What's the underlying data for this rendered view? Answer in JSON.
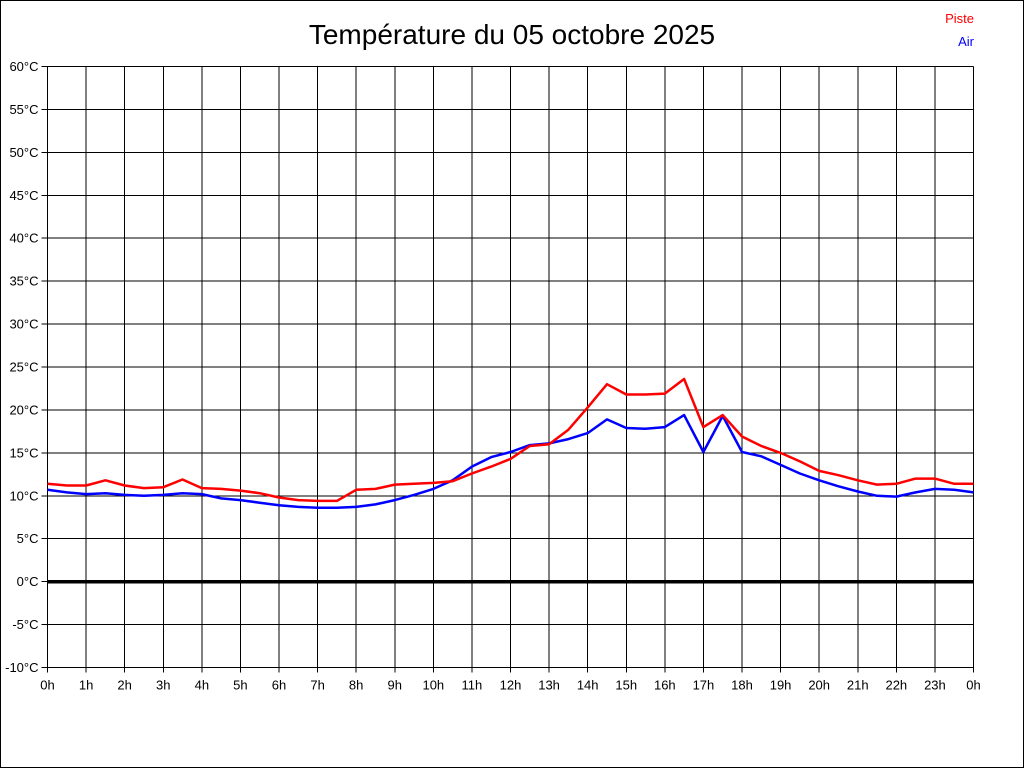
{
  "title": "Température du 05 octobre 2025",
  "legend": {
    "items": [
      {
        "label": "Piste",
        "color": "#ff0000"
      },
      {
        "label": "Air",
        "color": "#0000ff"
      }
    ]
  },
  "colors": {
    "background": "#ffffff",
    "grid": "#000000",
    "zero_line": "#000000",
    "piste": "#ff0000",
    "air": "#0000ff"
  },
  "chart_data": {
    "type": "line",
    "title": "Température du 05 octobre 2025",
    "xlabel": "",
    "ylabel": "°C",
    "xlim": [
      0,
      24
    ],
    "ylim": [
      -10,
      60
    ],
    "y_tick_step": 5,
    "grid": true,
    "zero_line_bold": true,
    "legend_position": "top-right",
    "x_tick_labels": [
      "0h",
      "1h",
      "2h",
      "3h",
      "4h",
      "5h",
      "6h",
      "7h",
      "8h",
      "9h",
      "10h",
      "11h",
      "12h",
      "13h",
      "14h",
      "15h",
      "16h",
      "17h",
      "18h",
      "19h",
      "20h",
      "21h",
      "22h",
      "23h",
      "0h"
    ],
    "y_tick_labels": [
      "60°C",
      "55°C",
      "50°C",
      "45°C",
      "40°C",
      "35°C",
      "30°C",
      "25°C",
      "20°C",
      "15°C",
      "10°C",
      "5°C",
      "0°C",
      "-5°C",
      "-10°C"
    ],
    "x": [
      0,
      0.5,
      1,
      1.5,
      2,
      2.5,
      3,
      3.5,
      4,
      4.5,
      5,
      5.5,
      6,
      6.5,
      7,
      7.5,
      8,
      8.5,
      9,
      9.5,
      10,
      10.5,
      11,
      11.5,
      12,
      12.5,
      13,
      13.5,
      14,
      14.5,
      15,
      15.5,
      16,
      16.5,
      17,
      17.5,
      18,
      18.5,
      19,
      19.5,
      20,
      20.5,
      21,
      21.5,
      22,
      22.5,
      23,
      23.5,
      24
    ],
    "series": [
      {
        "name": "Piste",
        "color": "#ff0000",
        "values": [
          11.4,
          11.2,
          11.2,
          11.8,
          11.2,
          10.9,
          11.0,
          11.9,
          10.9,
          10.8,
          10.6,
          10.3,
          9.8,
          9.5,
          9.4,
          9.4,
          10.7,
          10.8,
          11.3,
          11.4,
          11.5,
          11.7,
          12.6,
          13.4,
          14.3,
          15.8,
          16.0,
          17.7,
          20.3,
          23.0,
          21.8,
          21.8,
          21.9,
          23.6,
          18.0,
          19.4,
          16.9,
          15.8,
          15.0,
          14.0,
          12.9,
          12.4,
          11.8,
          11.3,
          11.4,
          12.0,
          12.0,
          11.4,
          11.4
        ]
      },
      {
        "name": "Air",
        "color": "#0000ff",
        "values": [
          10.7,
          10.4,
          10.2,
          10.3,
          10.1,
          10.0,
          10.1,
          10.3,
          10.2,
          9.7,
          9.5,
          9.2,
          8.9,
          8.7,
          8.6,
          8.6,
          8.7,
          9.0,
          9.5,
          10.1,
          10.8,
          11.8,
          13.4,
          14.5,
          15.1,
          15.9,
          16.1,
          16.6,
          17.3,
          18.9,
          17.9,
          17.8,
          18.0,
          19.4,
          15.1,
          19.3,
          15.1,
          14.6,
          13.6,
          12.6,
          11.8,
          11.1,
          10.5,
          10.0,
          9.9,
          10.4,
          10.8,
          10.7,
          10.4
        ]
      }
    ]
  }
}
